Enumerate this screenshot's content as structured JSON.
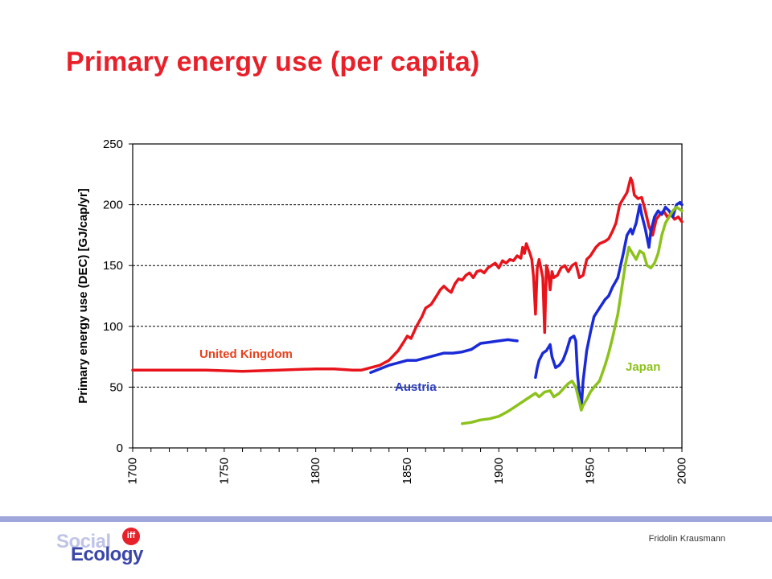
{
  "slide": {
    "title": "Primary energy use (per capita)",
    "author": "Fridolin Krausmann",
    "logo": {
      "line1": "Social",
      "line2": "Ecology",
      "badge": "iff"
    }
  },
  "colors": {
    "title": "#e8202a",
    "uk": "#e8141c",
    "austria": "#1a2ad6",
    "japan": "#8cc21c",
    "footer_bar": "#9fa6dc"
  },
  "chart_data": {
    "type": "line",
    "title": "",
    "xlabel": "",
    "ylabel": "Primary energy use (DEC) [GJ/cap/yr]",
    "xlim": [
      1700,
      2000
    ],
    "ylim": [
      0,
      250
    ],
    "xticks": [
      1700,
      1750,
      1800,
      1850,
      1900,
      1950,
      2000
    ],
    "yticks": [
      0,
      50,
      100,
      150,
      200,
      250
    ],
    "grid": "horizontal-dashed",
    "legend": "inline-labels",
    "series": [
      {
        "name": "United Kingdom",
        "color": "#e8141c",
        "points": [
          [
            1700,
            64
          ],
          [
            1720,
            64
          ],
          [
            1740,
            64
          ],
          [
            1760,
            63
          ],
          [
            1780,
            64
          ],
          [
            1800,
            65
          ],
          [
            1810,
            65
          ],
          [
            1820,
            64
          ],
          [
            1825,
            64
          ],
          [
            1830,
            66
          ],
          [
            1835,
            68
          ],
          [
            1840,
            72
          ],
          [
            1845,
            80
          ],
          [
            1848,
            87
          ],
          [
            1850,
            92
          ],
          [
            1852,
            90
          ],
          [
            1855,
            100
          ],
          [
            1858,
            108
          ],
          [
            1860,
            115
          ],
          [
            1863,
            118
          ],
          [
            1866,
            125
          ],
          [
            1868,
            130
          ],
          [
            1870,
            133
          ],
          [
            1872,
            130
          ],
          [
            1874,
            128
          ],
          [
            1876,
            135
          ],
          [
            1878,
            139
          ],
          [
            1880,
            138
          ],
          [
            1882,
            142
          ],
          [
            1884,
            144
          ],
          [
            1886,
            140
          ],
          [
            1888,
            145
          ],
          [
            1890,
            146
          ],
          [
            1892,
            144
          ],
          [
            1894,
            148
          ],
          [
            1896,
            150
          ],
          [
            1898,
            152
          ],
          [
            1900,
            148
          ],
          [
            1902,
            154
          ],
          [
            1904,
            152
          ],
          [
            1906,
            155
          ],
          [
            1908,
            154
          ],
          [
            1910,
            158
          ],
          [
            1912,
            156
          ],
          [
            1913,
            165
          ],
          [
            1914,
            160
          ],
          [
            1915,
            168
          ],
          [
            1917,
            160
          ],
          [
            1918,
            155
          ],
          [
            1919,
            140
          ],
          [
            1920,
            110
          ],
          [
            1921,
            148
          ],
          [
            1922,
            155
          ],
          [
            1924,
            140
          ],
          [
            1925,
            95
          ],
          [
            1926,
            150
          ],
          [
            1927,
            145
          ],
          [
            1928,
            130
          ],
          [
            1929,
            145
          ],
          [
            1930,
            140
          ],
          [
            1932,
            142
          ],
          [
            1934,
            148
          ],
          [
            1936,
            150
          ],
          [
            1938,
            145
          ],
          [
            1940,
            150
          ],
          [
            1942,
            152
          ],
          [
            1944,
            140
          ],
          [
            1946,
            142
          ],
          [
            1948,
            155
          ],
          [
            1950,
            158
          ],
          [
            1953,
            165
          ],
          [
            1955,
            168
          ],
          [
            1958,
            170
          ],
          [
            1960,
            172
          ],
          [
            1962,
            178
          ],
          [
            1964,
            185
          ],
          [
            1966,
            200
          ],
          [
            1968,
            205
          ],
          [
            1970,
            210
          ],
          [
            1972,
            222
          ],
          [
            1973,
            218
          ],
          [
            1974,
            208
          ],
          [
            1976,
            205
          ],
          [
            1978,
            206
          ],
          [
            1980,
            195
          ],
          [
            1982,
            182
          ],
          [
            1984,
            175
          ],
          [
            1986,
            188
          ],
          [
            1988,
            192
          ],
          [
            1990,
            195
          ],
          [
            1992,
            190
          ],
          [
            1994,
            192
          ],
          [
            1996,
            188
          ],
          [
            1998,
            190
          ],
          [
            2000,
            186
          ]
        ]
      },
      {
        "name": "Austria",
        "color": "#1a2ad6",
        "points": [
          [
            1830,
            62
          ],
          [
            1835,
            65
          ],
          [
            1840,
            68
          ],
          [
            1845,
            70
          ],
          [
            1850,
            72
          ],
          [
            1855,
            72
          ],
          [
            1860,
            74
          ],
          [
            1865,
            76
          ],
          [
            1870,
            78
          ],
          [
            1875,
            78
          ],
          [
            1880,
            79
          ],
          [
            1885,
            81
          ],
          [
            1890,
            86
          ],
          [
            1895,
            87
          ],
          [
            1900,
            88
          ],
          [
            1905,
            89
          ],
          [
            1910,
            88
          ],
          [
            null,
            null
          ],
          [
            1920,
            58
          ],
          [
            1921,
            66
          ],
          [
            1922,
            72
          ],
          [
            1924,
            78
          ],
          [
            1926,
            80
          ],
          [
            1928,
            85
          ],
          [
            1929,
            75
          ],
          [
            1931,
            66
          ],
          [
            1933,
            68
          ],
          [
            1935,
            72
          ],
          [
            1937,
            80
          ],
          [
            1939,
            90
          ],
          [
            1941,
            92
          ],
          [
            1942,
            88
          ],
          [
            1943,
            60
          ],
          [
            1944,
            45
          ],
          [
            1945,
            32
          ],
          [
            1946,
            55
          ],
          [
            1948,
            80
          ],
          [
            1950,
            95
          ],
          [
            1952,
            108
          ],
          [
            1955,
            115
          ],
          [
            1958,
            122
          ],
          [
            1960,
            125
          ],
          [
            1962,
            132
          ],
          [
            1965,
            140
          ],
          [
            1968,
            160
          ],
          [
            1970,
            175
          ],
          [
            1972,
            180
          ],
          [
            1973,
            176
          ],
          [
            1975,
            185
          ],
          [
            1977,
            200
          ],
          [
            1978,
            192
          ],
          [
            1980,
            180
          ],
          [
            1982,
            165
          ],
          [
            1983,
            178
          ],
          [
            1985,
            190
          ],
          [
            1987,
            195
          ],
          [
            1989,
            192
          ],
          [
            1991,
            198
          ],
          [
            1993,
            195
          ],
          [
            1995,
            190
          ],
          [
            1997,
            200
          ],
          [
            1999,
            202
          ],
          [
            2000,
            200
          ]
        ]
      },
      {
        "name": "Japan",
        "color": "#8cc21c",
        "points": [
          [
            1880,
            20
          ],
          [
            1885,
            21
          ],
          [
            1890,
            23
          ],
          [
            1895,
            24
          ],
          [
            1900,
            26
          ],
          [
            1905,
            30
          ],
          [
            1910,
            35
          ],
          [
            1915,
            40
          ],
          [
            1920,
            45
          ],
          [
            1922,
            42
          ],
          [
            1925,
            46
          ],
          [
            1928,
            47
          ],
          [
            1930,
            42
          ],
          [
            1933,
            45
          ],
          [
            1936,
            50
          ],
          [
            1938,
            53
          ],
          [
            1940,
            55
          ],
          [
            1942,
            50
          ],
          [
            1944,
            38
          ],
          [
            1945,
            31
          ],
          [
            1946,
            35
          ],
          [
            1948,
            40
          ],
          [
            1950,
            46
          ],
          [
            1952,
            50
          ],
          [
            1955,
            55
          ],
          [
            1958,
            68
          ],
          [
            1960,
            78
          ],
          [
            1962,
            90
          ],
          [
            1965,
            110
          ],
          [
            1967,
            130
          ],
          [
            1969,
            150
          ],
          [
            1971,
            165
          ],
          [
            1973,
            160
          ],
          [
            1975,
            155
          ],
          [
            1977,
            162
          ],
          [
            1979,
            160
          ],
          [
            1981,
            150
          ],
          [
            1983,
            148
          ],
          [
            1985,
            152
          ],
          [
            1987,
            160
          ],
          [
            1989,
            175
          ],
          [
            1991,
            185
          ],
          [
            1993,
            190
          ],
          [
            1995,
            195
          ],
          [
            1997,
            198
          ],
          [
            1999,
            196
          ],
          [
            2000,
            195
          ]
        ]
      }
    ],
    "annotations": [
      "United Kingdom",
      "Austria",
      "Japan"
    ]
  }
}
